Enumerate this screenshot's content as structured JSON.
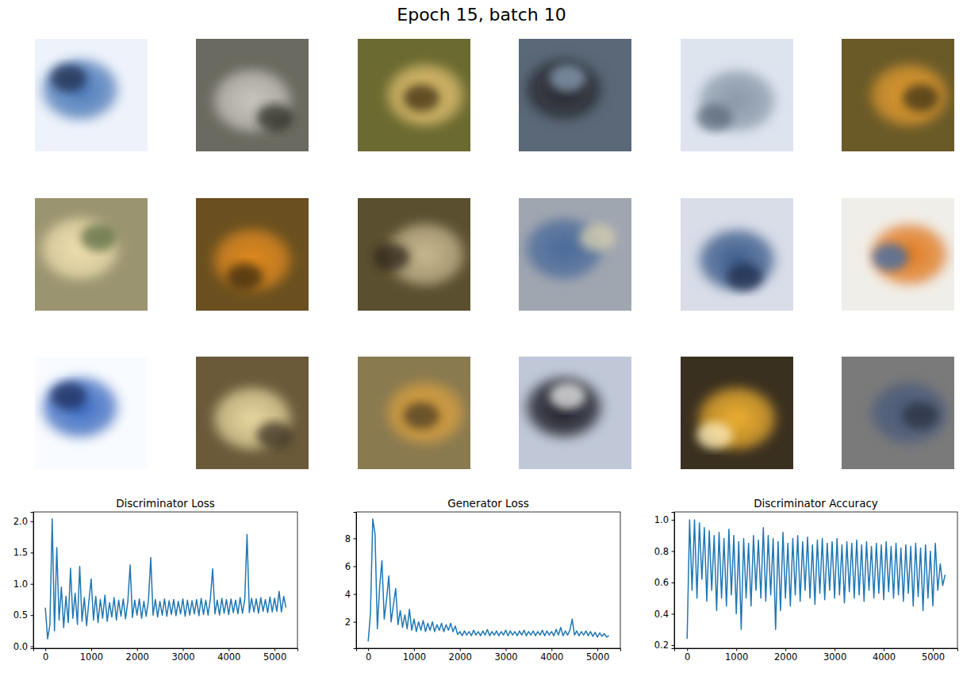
{
  "title": "Epoch 15, batch 10",
  "chart_data": [
    {
      "type": "line",
      "title": "Discriminator Loss",
      "color": "#1f77b4",
      "xlim": [
        -262,
        5500
      ],
      "xticks": [
        0,
        1000,
        2000,
        3000,
        4000,
        5000
      ],
      "ylim": [
        -0.03,
        2.15
      ],
      "yticks": [
        {
          "value": 0,
          "label": "0.0"
        },
        0.5,
        {
          "value": 1,
          "label": "1.0"
        },
        1.5,
        {
          "value": 2,
          "label": "2.0"
        }
      ],
      "x": [
        0,
        50,
        100,
        150,
        200,
        250,
        300,
        350,
        400,
        450,
        500,
        550,
        600,
        650,
        700,
        750,
        800,
        850,
        900,
        950,
        1000,
        1050,
        1100,
        1150,
        1200,
        1250,
        1300,
        1350,
        1400,
        1450,
        1500,
        1550,
        1600,
        1650,
        1700,
        1750,
        1800,
        1850,
        1900,
        1950,
        2000,
        2050,
        2100,
        2150,
        2200,
        2250,
        2300,
        2350,
        2400,
        2450,
        2500,
        2550,
        2600,
        2650,
        2700,
        2750,
        2800,
        2850,
        2900,
        2950,
        3000,
        3050,
        3100,
        3150,
        3200,
        3250,
        3300,
        3350,
        3400,
        3450,
        3500,
        3550,
        3600,
        3650,
        3700,
        3750,
        3800,
        3850,
        3900,
        3950,
        4000,
        4050,
        4100,
        4150,
        4200,
        4250,
        4300,
        4350,
        4400,
        4450,
        4500,
        4550,
        4600,
        4650,
        4700,
        4750,
        4800,
        4850,
        4900,
        4950,
        5000,
        5050,
        5100,
        5150,
        5200,
        5250
      ],
      "values": [
        0.62,
        0.12,
        0.35,
        2.04,
        0.25,
        1.58,
        0.42,
        0.95,
        0.3,
        0.8,
        0.38,
        1.25,
        0.45,
        0.85,
        0.35,
        1.28,
        0.4,
        0.78,
        0.33,
        0.72,
        1.08,
        0.42,
        0.8,
        0.38,
        0.75,
        0.45,
        0.82,
        0.4,
        0.7,
        0.47,
        0.78,
        0.42,
        0.74,
        0.48,
        0.76,
        0.44,
        0.72,
        1.3,
        0.46,
        0.74,
        0.5,
        0.76,
        0.45,
        0.72,
        0.48,
        0.74,
        1.42,
        0.5,
        0.75,
        0.47,
        0.72,
        0.5,
        0.76,
        0.48,
        0.73,
        0.51,
        0.75,
        0.49,
        0.72,
        0.52,
        0.76,
        0.48,
        0.74,
        0.5,
        0.73,
        0.52,
        0.75,
        0.49,
        0.77,
        0.51,
        0.74,
        0.5,
        0.76,
        1.24,
        0.52,
        0.74,
        0.5,
        0.77,
        0.53,
        0.75,
        0.51,
        0.76,
        0.54,
        0.74,
        0.52,
        0.78,
        0.53,
        0.75,
        1.79,
        0.54,
        0.77,
        0.55,
        0.76,
        0.53,
        0.78,
        0.56,
        0.75,
        0.54,
        0.79,
        0.55,
        0.77,
        0.56,
        0.88,
        0.55,
        0.8,
        0.62
      ]
    },
    {
      "type": "line",
      "title": "Generator Loss",
      "color": "#1f77b4",
      "xlim": [
        -262,
        5500
      ],
      "xticks": [
        0,
        1000,
        2000,
        3000,
        4000,
        5000
      ],
      "ylim": [
        0.1,
        9.9
      ],
      "yticks": [
        2,
        4,
        6,
        8
      ],
      "x": [
        0,
        50,
        100,
        150,
        200,
        250,
        300,
        350,
        400,
        450,
        500,
        550,
        600,
        650,
        700,
        750,
        800,
        850,
        900,
        950,
        1000,
        1050,
        1100,
        1150,
        1200,
        1250,
        1300,
        1350,
        1400,
        1450,
        1500,
        1550,
        1600,
        1650,
        1700,
        1750,
        1800,
        1850,
        1900,
        1950,
        2000,
        2050,
        2100,
        2150,
        2200,
        2250,
        2300,
        2350,
        2400,
        2450,
        2500,
        2550,
        2600,
        2650,
        2700,
        2750,
        2800,
        2850,
        2900,
        2950,
        3000,
        3050,
        3100,
        3150,
        3200,
        3250,
        3300,
        3350,
        3400,
        3450,
        3500,
        3550,
        3600,
        3650,
        3700,
        3750,
        3800,
        3850,
        3900,
        3950,
        4000,
        4050,
        4100,
        4150,
        4200,
        4250,
        4300,
        4350,
        4400,
        4450,
        4500,
        4550,
        4600,
        4650,
        4700,
        4750,
        4800,
        4850,
        4900,
        4950,
        5000,
        5050,
        5100,
        5150,
        5200,
        5250
      ],
      "values": [
        0.6,
        2.6,
        9.4,
        8.3,
        1.5,
        4.5,
        6.4,
        2.2,
        3.6,
        5.3,
        2.0,
        3.2,
        4.4,
        1.8,
        2.8,
        1.6,
        2.5,
        1.5,
        2.9,
        1.4,
        2.2,
        1.3,
        2.0,
        1.4,
        2.1,
        1.3,
        1.9,
        1.4,
        2.0,
        1.3,
        1.8,
        1.4,
        1.9,
        1.3,
        1.8,
        1.4,
        1.9,
        1.3,
        1.7,
        1.1,
        1.3,
        1.0,
        1.35,
        1.05,
        1.3,
        1.0,
        1.4,
        1.05,
        1.3,
        1.0,
        1.35,
        1.05,
        1.45,
        1.0,
        1.3,
        1.05,
        1.35,
        1.0,
        1.3,
        1.05,
        1.4,
        1.0,
        1.35,
        1.05,
        1.3,
        1.0,
        1.35,
        1.05,
        1.4,
        1.0,
        1.3,
        1.05,
        1.35,
        1.0,
        1.3,
        1.05,
        1.4,
        1.0,
        1.35,
        1.05,
        1.3,
        1.0,
        1.45,
        1.05,
        1.6,
        1.0,
        1.35,
        1.05,
        1.4,
        2.2,
        1.05,
        1.35,
        1.0,
        1.3,
        1.05,
        1.35,
        1.0,
        1.3,
        0.95,
        1.25,
        0.9,
        1.2,
        0.95,
        1.15,
        0.9,
        1.0
      ]
    },
    {
      "type": "line",
      "title": "Discriminator Accuracy",
      "color": "#1f77b4",
      "xlim": [
        -262,
        5500
      ],
      "xticks": [
        0,
        1000,
        2000,
        3000,
        4000,
        5000
      ],
      "ylim": [
        0.18,
        1.05
      ],
      "yticks": [
        0.2,
        0.4,
        0.6,
        0.8,
        {
          "value": 1,
          "label": "1.0"
        }
      ],
      "x": [
        0,
        50,
        100,
        150,
        200,
        250,
        300,
        350,
        400,
        450,
        500,
        550,
        600,
        650,
        700,
        750,
        800,
        850,
        900,
        950,
        1000,
        1050,
        1100,
        1150,
        1200,
        1250,
        1300,
        1350,
        1400,
        1450,
        1500,
        1550,
        1600,
        1650,
        1700,
        1750,
        1800,
        1850,
        1900,
        1950,
        2000,
        2050,
        2100,
        2150,
        2200,
        2250,
        2300,
        2350,
        2400,
        2450,
        2500,
        2550,
        2600,
        2650,
        2700,
        2750,
        2800,
        2850,
        2900,
        2950,
        3000,
        3050,
        3100,
        3150,
        3200,
        3250,
        3300,
        3350,
        3400,
        3450,
        3500,
        3550,
        3600,
        3650,
        3700,
        3750,
        3800,
        3850,
        3900,
        3950,
        4000,
        4050,
        4100,
        4150,
        4200,
        4250,
        4300,
        4350,
        4400,
        4450,
        4500,
        4550,
        4600,
        4650,
        4700,
        4750,
        4800,
        4850,
        4900,
        4950,
        5000,
        5050,
        5100,
        5150,
        5200,
        5250
      ],
      "values": [
        0.24,
        1.0,
        0.55,
        1.0,
        0.5,
        0.98,
        0.62,
        0.95,
        0.48,
        0.93,
        0.55,
        0.9,
        0.42,
        0.92,
        0.5,
        0.88,
        0.45,
        0.94,
        0.52,
        0.9,
        0.4,
        0.86,
        0.3,
        0.88,
        0.5,
        0.85,
        0.45,
        0.9,
        0.55,
        0.87,
        0.5,
        0.95,
        0.48,
        0.9,
        0.52,
        0.88,
        0.3,
        0.86,
        0.42,
        0.92,
        0.5,
        0.85,
        0.45,
        0.88,
        0.52,
        0.9,
        0.48,
        0.86,
        0.55,
        0.89,
        0.5,
        0.84,
        0.46,
        0.87,
        0.53,
        0.88,
        0.49,
        0.85,
        0.55,
        0.86,
        0.5,
        0.88,
        0.52,
        0.84,
        0.47,
        0.86,
        0.54,
        0.85,
        0.5,
        0.87,
        0.52,
        0.84,
        0.48,
        0.86,
        0.55,
        0.83,
        0.5,
        0.85,
        0.53,
        0.84,
        0.49,
        0.86,
        0.54,
        0.83,
        0.5,
        0.85,
        0.52,
        0.82,
        0.48,
        0.84,
        0.53,
        0.83,
        0.45,
        0.85,
        0.51,
        0.82,
        0.42,
        0.84,
        0.5,
        0.8,
        0.45,
        0.85,
        0.55,
        0.72,
        0.58,
        0.65
      ]
    }
  ]
}
